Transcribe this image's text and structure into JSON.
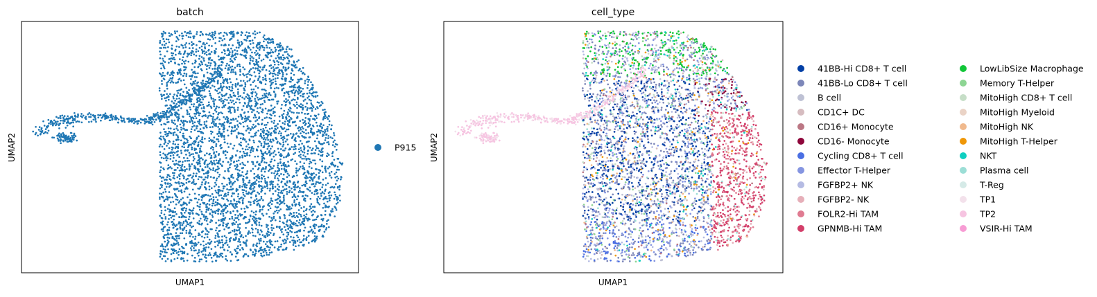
{
  "chart_data": [
    {
      "type": "scatter",
      "title": "batch",
      "xlabel": "UMAP1",
      "ylabel": "UMAP2",
      "grid": false,
      "ticks": false,
      "legend_position": "right",
      "legend": [
        {
          "label": "P915",
          "color": "#1f77b4"
        }
      ]
    },
    {
      "type": "scatter",
      "title": "cell_type",
      "xlabel": "UMAP1",
      "ylabel": "UMAP2",
      "grid": false,
      "ticks": false,
      "legend_position": "right",
      "legend": [
        {
          "label": "41BB-Hi CD8+ T cell",
          "color": "#023fa5"
        },
        {
          "label": "41BB-Lo CD8+ T cell",
          "color": "#7d87b9"
        },
        {
          "label": "B cell",
          "color": "#bec1d4"
        },
        {
          "label": "CD1C+ DC",
          "color": "#d6bcc0"
        },
        {
          "label": "CD16+ Monocyte",
          "color": "#bb7784"
        },
        {
          "label": "CD16- Monocyte",
          "color": "#8e063b"
        },
        {
          "label": "Cycling CD8+ T cell",
          "color": "#4a6fe3"
        },
        {
          "label": "Effector T-Helper",
          "color": "#8595e1"
        },
        {
          "label": "FGFBP2+ NK",
          "color": "#b5bbe3"
        },
        {
          "label": "FGFBP2- NK",
          "color": "#e6afb9"
        },
        {
          "label": "FOLR2-Hi TAM",
          "color": "#e07b91"
        },
        {
          "label": "GPNMB-Hi TAM",
          "color": "#d33f6a"
        },
        {
          "label": "LowLibSize Macrophage",
          "color": "#11c638"
        },
        {
          "label": "Memory T-Helper",
          "color": "#8dd593"
        },
        {
          "label": "MitoHigh CD8+ T cell",
          "color": "#c6dec7"
        },
        {
          "label": "MitoHigh Myeloid",
          "color": "#ead3c6"
        },
        {
          "label": "MitoHigh NK",
          "color": "#f0b98d"
        },
        {
          "label": "MitoHigh T-Helper",
          "color": "#ef9708"
        },
        {
          "label": "NKT",
          "color": "#0fcfc0"
        },
        {
          "label": "Plasma cell",
          "color": "#9cded6"
        },
        {
          "label": "T-Reg",
          "color": "#d5eae7"
        },
        {
          "label": "TP1",
          "color": "#f3e1eb"
        },
        {
          "label": "TP2",
          "color": "#f6c4e1"
        },
        {
          "label": "VSIR-Hi TAM",
          "color": "#f79cd4"
        }
      ]
    }
  ]
}
